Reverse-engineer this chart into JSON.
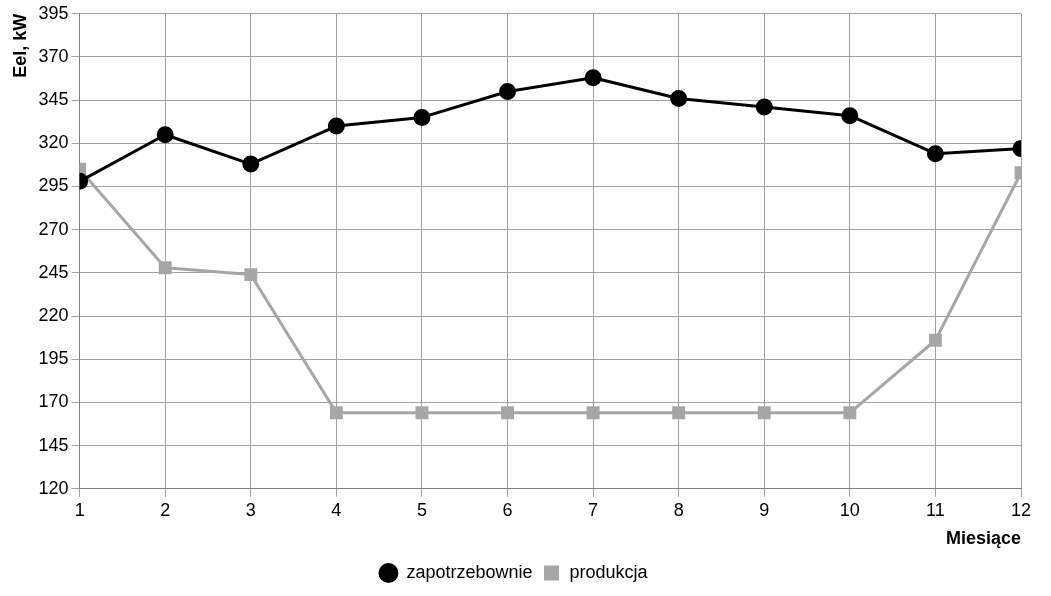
{
  "chart_data": {
    "type": "line",
    "xlabel": "Miesiące",
    "ylabel": "Eel, kW",
    "x": [
      1,
      2,
      3,
      4,
      5,
      6,
      7,
      8,
      9,
      10,
      11,
      12
    ],
    "xlim": [
      1,
      12
    ],
    "xticks": [
      1,
      2,
      3,
      4,
      5,
      6,
      7,
      8,
      9,
      10,
      11,
      12
    ],
    "series": [
      {
        "name": "zapotrzebownie",
        "color": "#000000",
        "marker": "circle",
        "values": [
          298,
          325,
          308,
          330,
          335,
          350,
          358,
          346,
          341,
          336,
          314,
          317
        ]
      },
      {
        "name": "produkcja",
        "color": "#a6a6a6",
        "marker": "square",
        "values": [
          305,
          248,
          244,
          164,
          164,
          164,
          164,
          164,
          164,
          164,
          206,
          303
        ]
      }
    ],
    "ylim": [
      120,
      395
    ],
    "yticks": [
      120,
      145,
      170,
      195,
      220,
      245,
      270,
      295,
      320,
      345,
      370,
      395
    ],
    "grid": true,
    "legend": "bottom",
    "line_style": "solid"
  }
}
